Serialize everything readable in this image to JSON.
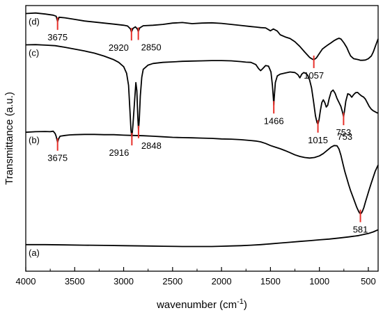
{
  "chart_data": {
    "type": "line",
    "xlabel": "wavenumber (cm",
    "xlabel_superscript": "-1",
    "xlabel_suffix": ")",
    "ylabel": "Transmittance (a.u.)",
    "xlim": [
      4000,
      400
    ],
    "xticks": [
      4000,
      3500,
      3000,
      2500,
      2000,
      1500,
      1000,
      500
    ],
    "y_offset_range": [
      0,
      100
    ],
    "stacked": true,
    "grid": false,
    "legend": "none",
    "line_color": "#000000",
    "marker_color": "#e8312b",
    "series": [
      {
        "name": "(d)",
        "points": [
          [
            4000,
            97
          ],
          [
            3900,
            97.2
          ],
          [
            3800,
            96.8
          ],
          [
            3720,
            96.4
          ],
          [
            3690,
            96
          ],
          [
            3675,
            94
          ],
          [
            3660,
            95.6
          ],
          [
            3600,
            95.4
          ],
          [
            3500,
            94.8
          ],
          [
            3400,
            94.2
          ],
          [
            3300,
            93.8
          ],
          [
            3200,
            93.4
          ],
          [
            3100,
            93
          ],
          [
            3000,
            92.6
          ],
          [
            2960,
            92.3
          ],
          [
            2930,
            91.2
          ],
          [
            2920,
            90
          ],
          [
            2905,
            91.4
          ],
          [
            2880,
            92
          ],
          [
            2860,
            91.2
          ],
          [
            2850,
            90.2
          ],
          [
            2835,
            91.6
          ],
          [
            2800,
            92.4
          ],
          [
            2700,
            92.6
          ],
          [
            2600,
            92.9
          ],
          [
            2500,
            93.4
          ],
          [
            2400,
            93.6
          ],
          [
            2300,
            93.2
          ],
          [
            2200,
            93.4
          ],
          [
            2100,
            93.5
          ],
          [
            2000,
            93.3
          ],
          [
            1900,
            92.9
          ],
          [
            1800,
            92.5
          ],
          [
            1700,
            92.1
          ],
          [
            1650,
            91.9
          ],
          [
            1600,
            91.7
          ],
          [
            1550,
            91.6
          ],
          [
            1500,
            90.5
          ],
          [
            1470,
            91.2
          ],
          [
            1430,
            90.4
          ],
          [
            1400,
            89
          ],
          [
            1350,
            88.2
          ],
          [
            1300,
            87.6
          ],
          [
            1250,
            86.4
          ],
          [
            1200,
            84.6
          ],
          [
            1150,
            82.5
          ],
          [
            1100,
            80.5
          ],
          [
            1080,
            80
          ],
          [
            1057,
            79.6
          ],
          [
            1030,
            80.3
          ],
          [
            1000,
            82
          ],
          [
            970,
            83.6
          ],
          [
            950,
            84.2
          ],
          [
            920,
            85
          ],
          [
            880,
            86
          ],
          [
            850,
            86.8
          ],
          [
            820,
            87.4
          ],
          [
            800,
            87.7
          ],
          [
            780,
            87.4
          ],
          [
            750,
            86
          ],
          [
            720,
            84.2
          ],
          [
            700,
            82.5
          ],
          [
            680,
            81
          ],
          [
            650,
            80
          ],
          [
            620,
            79.8
          ],
          [
            600,
            79.6
          ],
          [
            580,
            79.4
          ],
          [
            560,
            79.4
          ],
          [
            530,
            79.5
          ],
          [
            500,
            80
          ],
          [
            470,
            81
          ],
          [
            450,
            82.5
          ],
          [
            430,
            84.5
          ],
          [
            410,
            86.5
          ],
          [
            400,
            87.5
          ]
        ],
        "peaks": [
          {
            "wavenumber": 3675,
            "label": "3675",
            "y": 94,
            "label_side": "below"
          },
          {
            "wavenumber": 2920,
            "label": "2920",
            "y": 90,
            "label_side": "below-left"
          },
          {
            "wavenumber": 2850,
            "label": "2850",
            "y": 90.2,
            "label_side": "below-right"
          },
          {
            "wavenumber": 1057,
            "label": "1057",
            "y": 79.6,
            "label_side": "below"
          }
        ]
      },
      {
        "name": "(c)",
        "points": [
          [
            4000,
            85.2
          ],
          [
            3900,
            85.3
          ],
          [
            3800,
            85.1
          ],
          [
            3700,
            84.9
          ],
          [
            3600,
            84.3
          ],
          [
            3500,
            83.6
          ],
          [
            3400,
            82.9
          ],
          [
            3300,
            82.1
          ],
          [
            3200,
            81
          ],
          [
            3100,
            79.6
          ],
          [
            3050,
            78.6
          ],
          [
            3000,
            77
          ],
          [
            2970,
            74.5
          ],
          [
            2950,
            70
          ],
          [
            2935,
            60
          ],
          [
            2925,
            53
          ],
          [
            2916,
            50.5
          ],
          [
            2905,
            55
          ],
          [
            2890,
            63
          ],
          [
            2875,
            71
          ],
          [
            2865,
            68
          ],
          [
            2855,
            58
          ],
          [
            2848,
            53.2
          ],
          [
            2840,
            57
          ],
          [
            2830,
            66
          ],
          [
            2815,
            73
          ],
          [
            2800,
            76
          ],
          [
            2750,
            77.6
          ],
          [
            2700,
            78.2
          ],
          [
            2600,
            78.6
          ],
          [
            2500,
            78.8
          ],
          [
            2400,
            79
          ],
          [
            2300,
            79.1
          ],
          [
            2200,
            79.2
          ],
          [
            2100,
            79.3
          ],
          [
            2000,
            79.3
          ],
          [
            1900,
            79.2
          ],
          [
            1800,
            78.9
          ],
          [
            1750,
            78.7
          ],
          [
            1700,
            78.6
          ],
          [
            1650,
            77.8
          ],
          [
            1620,
            76.2
          ],
          [
            1600,
            75.5
          ],
          [
            1580,
            76.2
          ],
          [
            1550,
            77.4
          ],
          [
            1520,
            77.2
          ],
          [
            1495,
            75
          ],
          [
            1480,
            70
          ],
          [
            1470,
            65
          ],
          [
            1466,
            62.5
          ],
          [
            1462,
            65
          ],
          [
            1450,
            71
          ],
          [
            1430,
            73.5
          ],
          [
            1400,
            74.2
          ],
          [
            1350,
            74.6
          ],
          [
            1300,
            75
          ],
          [
            1250,
            74.8
          ],
          [
            1220,
            74
          ],
          [
            1200,
            72.8
          ],
          [
            1180,
            74.2
          ],
          [
            1160,
            74.8
          ],
          [
            1140,
            74.5
          ],
          [
            1120,
            73.8
          ],
          [
            1100,
            72
          ],
          [
            1080,
            69
          ],
          [
            1060,
            64
          ],
          [
            1040,
            58.5
          ],
          [
            1025,
            56
          ],
          [
            1015,
            55.3
          ],
          [
            1005,
            56.8
          ],
          [
            990,
            60.5
          ],
          [
            975,
            63.5
          ],
          [
            960,
            64.5
          ],
          [
            945,
            63.5
          ],
          [
            930,
            61.8
          ],
          [
            915,
            62.5
          ],
          [
            900,
            65
          ],
          [
            880,
            67.5
          ],
          [
            860,
            68.2
          ],
          [
            840,
            67
          ],
          [
            820,
            65
          ],
          [
            800,
            63.5
          ],
          [
            780,
            62
          ],
          [
            765,
            60
          ],
          [
            753,
            58.1
          ],
          [
            745,
            60
          ],
          [
            730,
            64
          ],
          [
            710,
            66.8
          ],
          [
            690,
            66.5
          ],
          [
            670,
            65.5
          ],
          [
            650,
            66.5
          ],
          [
            630,
            67.2
          ],
          [
            610,
            67.3
          ],
          [
            590,
            66.6
          ],
          [
            570,
            66
          ],
          [
            550,
            65.6
          ],
          [
            530,
            64.8
          ],
          [
            510,
            63.4
          ],
          [
            490,
            62
          ],
          [
            470,
            61
          ],
          [
            450,
            60.4
          ],
          [
            430,
            60
          ],
          [
            410,
            59.6
          ],
          [
            400,
            59.5
          ]
        ],
        "peaks": [
          {
            "wavenumber": 2916,
            "label": "2916",
            "y": 50.5,
            "label_side": "below-left"
          },
          {
            "wavenumber": 2848,
            "label": "2848",
            "y": 53.2,
            "label_side": "below-right"
          },
          {
            "wavenumber": 1466,
            "label": "1466",
            "y": 62.5,
            "label_side": "below"
          },
          {
            "wavenumber": 1015,
            "label": "1015",
            "y": 55.3,
            "label_side": "below"
          },
          {
            "wavenumber": 753,
            "label": "753",
            "y": 58.1,
            "label_side": "below"
          }
        ]
      },
      {
        "name": "(b)",
        "points": [
          [
            4000,
            52.3
          ],
          [
            3900,
            52.5
          ],
          [
            3800,
            52.6
          ],
          [
            3750,
            52.5
          ],
          [
            3720,
            52.7
          ],
          [
            3700,
            51.8
          ],
          [
            3690,
            50.8
          ],
          [
            3675,
            48.5
          ],
          [
            3665,
            49.8
          ],
          [
            3650,
            50.8
          ],
          [
            3600,
            51.1
          ],
          [
            3550,
            51.3
          ],
          [
            3500,
            51.4
          ],
          [
            3400,
            51.5
          ],
          [
            3300,
            51.5
          ],
          [
            3200,
            51.4
          ],
          [
            3100,
            51.4
          ],
          [
            3000,
            51.2
          ],
          [
            2900,
            51.1
          ],
          [
            2800,
            51
          ],
          [
            2700,
            50.8
          ],
          [
            2600,
            50.6
          ],
          [
            2500,
            50.4
          ],
          [
            2400,
            50.3
          ],
          [
            2300,
            50.2
          ],
          [
            2200,
            50.1
          ],
          [
            2100,
            50
          ],
          [
            2000,
            49.8
          ],
          [
            1900,
            49.7
          ],
          [
            1800,
            49.5
          ],
          [
            1700,
            49.2
          ],
          [
            1650,
            49
          ],
          [
            1600,
            48.7
          ],
          [
            1550,
            48.1
          ],
          [
            1500,
            47.3
          ],
          [
            1450,
            46.7
          ],
          [
            1400,
            46.1
          ],
          [
            1350,
            45.4
          ],
          [
            1300,
            44.6
          ],
          [
            1250,
            43.8
          ],
          [
            1200,
            43.2
          ],
          [
            1150,
            42.8
          ],
          [
            1100,
            42.6
          ],
          [
            1050,
            42.8
          ],
          [
            1000,
            43.4
          ],
          [
            960,
            44.3
          ],
          [
            920,
            45.5
          ],
          [
            880,
            46.7
          ],
          [
            850,
            47.3
          ],
          [
            820,
            47.2
          ],
          [
            800,
            46
          ],
          [
            780,
            43.6
          ],
          [
            760,
            40.5
          ],
          [
            740,
            37.5
          ],
          [
            720,
            35
          ],
          [
            700,
            32.5
          ],
          [
            680,
            30.2
          ],
          [
            660,
            28.2
          ],
          [
            640,
            26.2
          ],
          [
            620,
            24.2
          ],
          [
            600,
            22.6
          ],
          [
            590,
            21.9
          ],
          [
            581,
            21.6
          ],
          [
            570,
            21.9
          ],
          [
            560,
            22.6
          ],
          [
            545,
            24
          ],
          [
            530,
            26
          ],
          [
            510,
            28.4
          ],
          [
            490,
            30.8
          ],
          [
            470,
            33.2
          ],
          [
            450,
            35.4
          ],
          [
            430,
            37.6
          ],
          [
            410,
            39.2
          ],
          [
            400,
            40
          ]
        ],
        "peaks": [
          {
            "wavenumber": 3675,
            "label": "3675",
            "y": 48.5,
            "label_side": "below"
          },
          {
            "wavenumber": 581,
            "label": "581",
            "y": 21.6,
            "label_side": "below"
          }
        ],
        "annotations": [
          {
            "wavenumber": 740,
            "y": 49.5,
            "label": "753"
          }
        ]
      },
      {
        "name": "(a)",
        "points": [
          [
            4000,
            10
          ],
          [
            3900,
            10
          ],
          [
            3800,
            10
          ],
          [
            3600,
            9.9
          ],
          [
            3400,
            9.8
          ],
          [
            3200,
            9.7
          ],
          [
            3000,
            9.6
          ],
          [
            2800,
            9.5
          ],
          [
            2600,
            9.4
          ],
          [
            2400,
            9.3
          ],
          [
            2200,
            9.3
          ],
          [
            2100,
            9.3
          ],
          [
            2000,
            9.4
          ],
          [
            1900,
            9.5
          ],
          [
            1800,
            9.6
          ],
          [
            1700,
            9.8
          ],
          [
            1600,
            10
          ],
          [
            1500,
            10.3
          ],
          [
            1400,
            10.6
          ],
          [
            1300,
            10.9
          ],
          [
            1200,
            11.2
          ],
          [
            1100,
            11.5
          ],
          [
            1000,
            11.8
          ],
          [
            900,
            12.1
          ],
          [
            800,
            12.5
          ],
          [
            700,
            12.9
          ],
          [
            600,
            13.4
          ],
          [
            500,
            14.2
          ],
          [
            450,
            14.8
          ],
          [
            400,
            15.6
          ]
        ]
      }
    ]
  }
}
